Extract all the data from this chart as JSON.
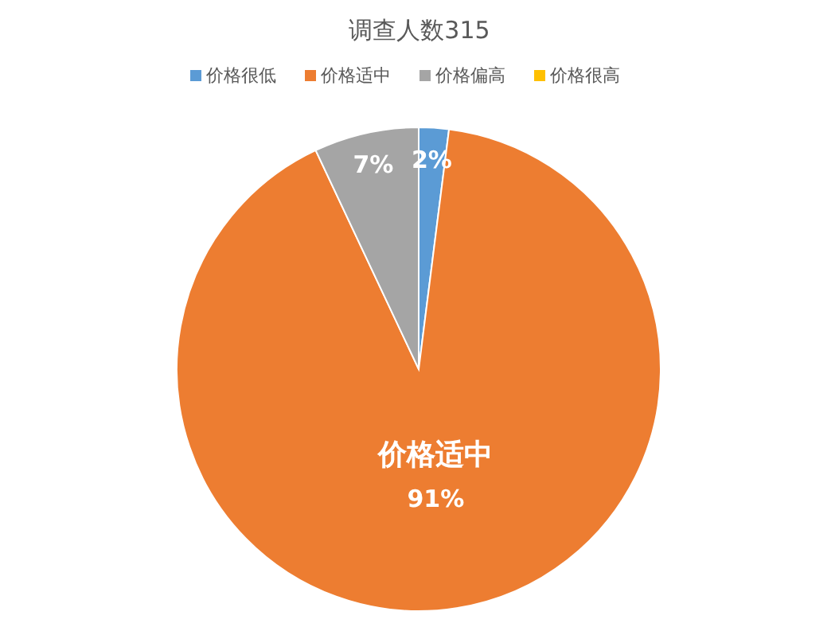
{
  "chart_data": {
    "type": "pie",
    "title": "调查人数315",
    "categories": [
      "价格很低",
      "价格适中",
      "价格偏高",
      "价格很高"
    ],
    "values": [
      2,
      91,
      7,
      0
    ],
    "colors": [
      "#5b9bd5",
      "#ed7d31",
      "#a5a5a5",
      "#ffc000"
    ],
    "value_labels": [
      "2%",
      "价格适中\n91%",
      "7%",
      null
    ],
    "legend": "top"
  }
}
